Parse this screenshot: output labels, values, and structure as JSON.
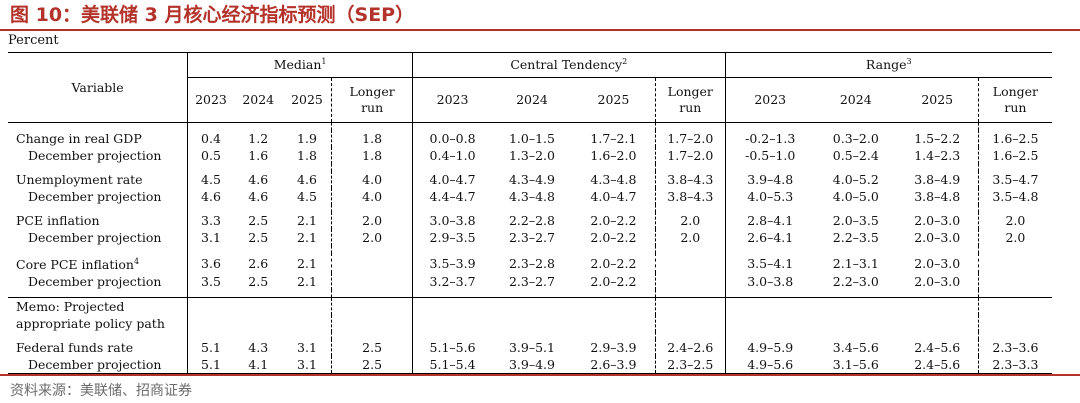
{
  "figure_title": "图 10：美联储 3 月核心经济指标预测（SEP）",
  "unit_label": "Percent",
  "source": "资料来源：美联储、招商证券",
  "header": {
    "variable": "Variable",
    "groups": [
      {
        "label": "Median",
        "note": "1"
      },
      {
        "label": "Central Tendency",
        "note": "2"
      },
      {
        "label": "Range",
        "note": "3"
      }
    ],
    "years": [
      "2023",
      "2024",
      "2025"
    ],
    "longer_run_1": "Longer",
    "longer_run_2": "run"
  },
  "rows": [
    {
      "label": "Change in real GDP",
      "note": "",
      "median": [
        "0.4",
        "1.2",
        "1.9",
        "1.8"
      ],
      "ct": [
        "0.0–0.8",
        "1.0–1.5",
        "1.7–2.1",
        "1.7–2.0"
      ],
      "range": [
        "-0.2–1.3",
        "0.3–2.0",
        "1.5–2.2",
        "1.6–2.5"
      ]
    },
    {
      "label": "December projection",
      "note": "",
      "median": [
        "0.5",
        "1.6",
        "1.8",
        "1.8"
      ],
      "ct": [
        "0.4–1.0",
        "1.3–2.0",
        "1.6–2.0",
        "1.7–2.0"
      ],
      "range": [
        "-0.5–1.0",
        "0.5–2.4",
        "1.4–2.3",
        "1.6–2.5"
      ]
    },
    {
      "label": "Unemployment rate",
      "note": "",
      "median": [
        "4.5",
        "4.6",
        "4.6",
        "4.0"
      ],
      "ct": [
        "4.0–4.7",
        "4.3–4.9",
        "4.3–4.8",
        "3.8–4.3"
      ],
      "range": [
        "3.9–4.8",
        "4.0–5.2",
        "3.8–4.9",
        "3.5–4.7"
      ]
    },
    {
      "label": "December projection",
      "note": "",
      "median": [
        "4.6",
        "4.6",
        "4.5",
        "4.0"
      ],
      "ct": [
        "4.4–4.7",
        "4.3–4.8",
        "4.0–4.7",
        "3.8–4.3"
      ],
      "range": [
        "4.0–5.3",
        "4.0–5.0",
        "3.8–4.8",
        "3.5–4.8"
      ]
    },
    {
      "label": "PCE inflation",
      "note": "",
      "median": [
        "3.3",
        "2.5",
        "2.1",
        "2.0"
      ],
      "ct": [
        "3.0–3.8",
        "2.2–2.8",
        "2.0–2.2",
        "2.0"
      ],
      "range": [
        "2.8–4.1",
        "2.0–3.5",
        "2.0–3.0",
        "2.0"
      ]
    },
    {
      "label": "December projection",
      "note": "",
      "median": [
        "3.1",
        "2.5",
        "2.1",
        "2.0"
      ],
      "ct": [
        "2.9–3.5",
        "2.3–2.7",
        "2.0–2.2",
        "2.0"
      ],
      "range": [
        "2.6–4.1",
        "2.2–3.5",
        "2.0–3.0",
        "2.0"
      ]
    },
    {
      "label": "Core PCE inflation",
      "note": "4",
      "median": [
        "3.6",
        "2.6",
        "2.1",
        ""
      ],
      "ct": [
        "3.5–3.9",
        "2.3–2.8",
        "2.0–2.2",
        ""
      ],
      "range": [
        "3.5–4.1",
        "2.1–3.1",
        "2.0–3.0",
        ""
      ]
    },
    {
      "label": "December projection",
      "note": "",
      "median": [
        "3.5",
        "2.5",
        "2.1",
        ""
      ],
      "ct": [
        "3.2–3.7",
        "2.3–2.7",
        "2.0–2.2",
        ""
      ],
      "range": [
        "3.0–3.8",
        "2.2–3.0",
        "2.0–3.0",
        ""
      ]
    }
  ],
  "memo": {
    "line1": "Memo: Projected",
    "line2": "appropriate policy path"
  },
  "policy_rows": [
    {
      "label": "Federal funds rate",
      "median": [
        "5.1",
        "4.3",
        "3.1",
        "2.5"
      ],
      "ct": [
        "5.1–5.6",
        "3.9–5.1",
        "2.9–3.9",
        "2.4–2.6"
      ],
      "range": [
        "4.9–5.9",
        "3.4–5.6",
        "2.4–5.6",
        "2.3–3.6"
      ]
    },
    {
      "label": "December projection",
      "median": [
        "5.1",
        "4.1",
        "3.1",
        "2.5"
      ],
      "ct": [
        "5.1–5.4",
        "3.9–4.9",
        "2.6–3.9",
        "2.3–2.5"
      ],
      "range": [
        "4.9–5.6",
        "3.1–5.6",
        "2.4–5.6",
        "2.3–3.3"
      ]
    }
  ]
}
